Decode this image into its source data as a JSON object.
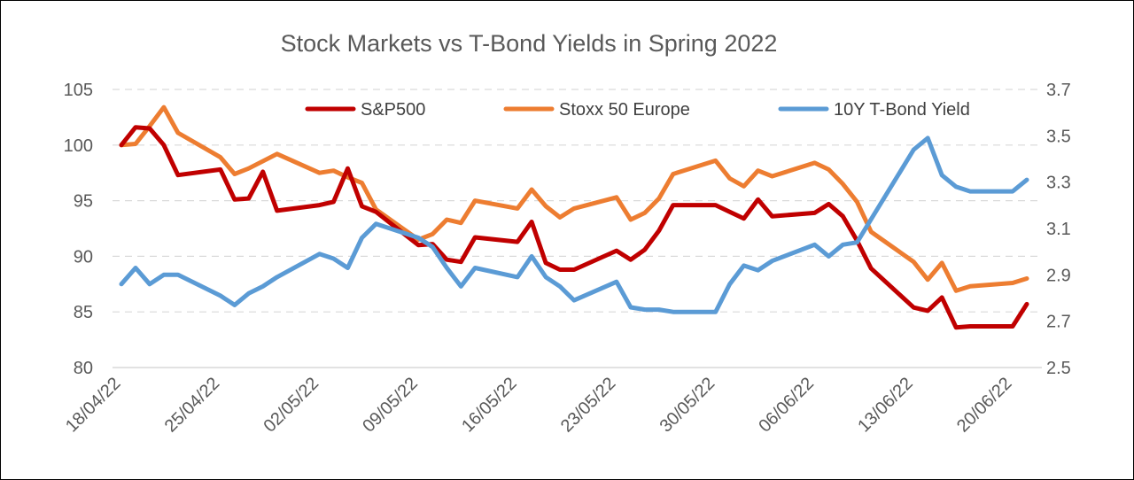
{
  "chart_data": {
    "type": "line",
    "title": "Stock Markets vs T-Bond Yields in Spring 2022",
    "x_tick_labels": [
      "18/04/22",
      "25/04/22",
      "02/05/22",
      "09/05/22",
      "16/05/22",
      "23/05/22",
      "30/05/22",
      "06/06/22",
      "13/06/22",
      "20/06/22"
    ],
    "x_tick_days": [
      0,
      7,
      14,
      21,
      28,
      35,
      42,
      49,
      56,
      63
    ],
    "y_left": {
      "min": 80,
      "max": 105,
      "ticks": [
        80,
        85,
        90,
        95,
        100,
        105
      ]
    },
    "y_right": {
      "min": 2.5,
      "max": 3.7,
      "ticks": [
        "2.5",
        "2.7",
        "2.9",
        "3.1",
        "3.3",
        "3.5",
        "3.7"
      ]
    },
    "grid": true,
    "legend_position": "top",
    "series": [
      {
        "name": "S&P500",
        "axis": "left",
        "color": "#c00000",
        "points": [
          [
            0,
            100.0
          ],
          [
            1,
            101.6
          ],
          [
            2,
            101.5
          ],
          [
            3,
            100.0
          ],
          [
            4,
            97.3
          ],
          [
            7,
            97.8
          ],
          [
            8,
            95.1
          ],
          [
            9,
            95.2
          ],
          [
            10,
            97.6
          ],
          [
            11,
            94.1
          ],
          [
            14,
            94.6
          ],
          [
            15,
            94.9
          ],
          [
            16,
            97.9
          ],
          [
            17,
            94.5
          ],
          [
            18,
            94.0
          ],
          [
            21,
            91.0
          ],
          [
            22,
            91.1
          ],
          [
            23,
            89.7
          ],
          [
            24,
            89.5
          ],
          [
            25,
            91.7
          ],
          [
            28,
            91.3
          ],
          [
            29,
            93.1
          ],
          [
            30,
            89.4
          ],
          [
            31,
            88.8
          ],
          [
            32,
            88.8
          ],
          [
            35,
            90.5
          ],
          [
            36,
            89.7
          ],
          [
            37,
            90.6
          ],
          [
            38,
            92.3
          ],
          [
            39,
            94.6
          ],
          [
            42,
            94.6
          ],
          [
            43,
            94.0
          ],
          [
            44,
            93.4
          ],
          [
            45,
            95.1
          ],
          [
            46,
            93.6
          ],
          [
            49,
            93.9
          ],
          [
            50,
            94.7
          ],
          [
            51,
            93.6
          ],
          [
            52,
            91.4
          ],
          [
            53,
            88.9
          ],
          [
            56,
            85.4
          ],
          [
            57,
            85.1
          ],
          [
            58,
            86.3
          ],
          [
            59,
            83.6
          ],
          [
            60,
            83.7
          ],
          [
            63,
            83.7
          ],
          [
            64,
            85.7
          ]
        ]
      },
      {
        "name": "Stoxx 50 Europe",
        "axis": "left",
        "color": "#ed7d31",
        "points": [
          [
            0,
            100.0
          ],
          [
            1,
            100.1
          ],
          [
            2,
            101.7
          ],
          [
            3,
            103.4
          ],
          [
            4,
            101.1
          ],
          [
            7,
            98.9
          ],
          [
            8,
            97.4
          ],
          [
            9,
            97.9
          ],
          [
            11,
            99.2
          ],
          [
            14,
            97.5
          ],
          [
            15,
            97.7
          ],
          [
            16,
            97.1
          ],
          [
            17,
            96.6
          ],
          [
            18,
            94.2
          ],
          [
            21,
            91.5
          ],
          [
            22,
            92.0
          ],
          [
            23,
            93.3
          ],
          [
            24,
            93.0
          ],
          [
            25,
            95.0
          ],
          [
            28,
            94.3
          ],
          [
            29,
            96.0
          ],
          [
            30,
            94.5
          ],
          [
            31,
            93.5
          ],
          [
            32,
            94.3
          ],
          [
            35,
            95.3
          ],
          [
            36,
            93.3
          ],
          [
            37,
            93.9
          ],
          [
            38,
            95.2
          ],
          [
            39,
            97.4
          ],
          [
            42,
            98.6
          ],
          [
            43,
            97.0
          ],
          [
            44,
            96.3
          ],
          [
            45,
            97.7
          ],
          [
            46,
            97.2
          ],
          [
            49,
            98.4
          ],
          [
            50,
            97.8
          ],
          [
            51,
            96.5
          ],
          [
            52,
            94.9
          ],
          [
            53,
            92.2
          ],
          [
            56,
            89.5
          ],
          [
            57,
            87.9
          ],
          [
            58,
            89.4
          ],
          [
            59,
            86.9
          ],
          [
            60,
            87.3
          ],
          [
            63,
            87.6
          ],
          [
            64,
            88.0
          ]
        ]
      },
      {
        "name": "10Y T-Bond Yield",
        "axis": "right",
        "color": "#5b9bd5",
        "points": [
          [
            0,
            2.86
          ],
          [
            1,
            2.93
          ],
          [
            2,
            2.86
          ],
          [
            3,
            2.9
          ],
          [
            4,
            2.9
          ],
          [
            7,
            2.81
          ],
          [
            8,
            2.77
          ],
          [
            9,
            2.82
          ],
          [
            10,
            2.85
          ],
          [
            11,
            2.89
          ],
          [
            14,
            2.99
          ],
          [
            15,
            2.97
          ],
          [
            16,
            2.93
          ],
          [
            17,
            3.06
          ],
          [
            18,
            3.12
          ],
          [
            21,
            3.06
          ],
          [
            22,
            3.02
          ],
          [
            23,
            2.93
          ],
          [
            24,
            2.85
          ],
          [
            25,
            2.93
          ],
          [
            28,
            2.89
          ],
          [
            29,
            2.98
          ],
          [
            30,
            2.89
          ],
          [
            31,
            2.85
          ],
          [
            32,
            2.79
          ],
          [
            35,
            2.87
          ],
          [
            36,
            2.76
          ],
          [
            37,
            2.75
          ],
          [
            38,
            2.75
          ],
          [
            39,
            2.74
          ],
          [
            42,
            2.74
          ],
          [
            43,
            2.86
          ],
          [
            44,
            2.94
          ],
          [
            45,
            2.92
          ],
          [
            46,
            2.96
          ],
          [
            49,
            3.03
          ],
          [
            50,
            2.98
          ],
          [
            51,
            3.03
          ],
          [
            52,
            3.04
          ],
          [
            53,
            3.14
          ],
          [
            56,
            3.44
          ],
          [
            57,
            3.49
          ],
          [
            58,
            3.33
          ],
          [
            59,
            3.28
          ],
          [
            60,
            3.26
          ],
          [
            63,
            3.26
          ],
          [
            64,
            3.31
          ]
        ]
      }
    ]
  }
}
